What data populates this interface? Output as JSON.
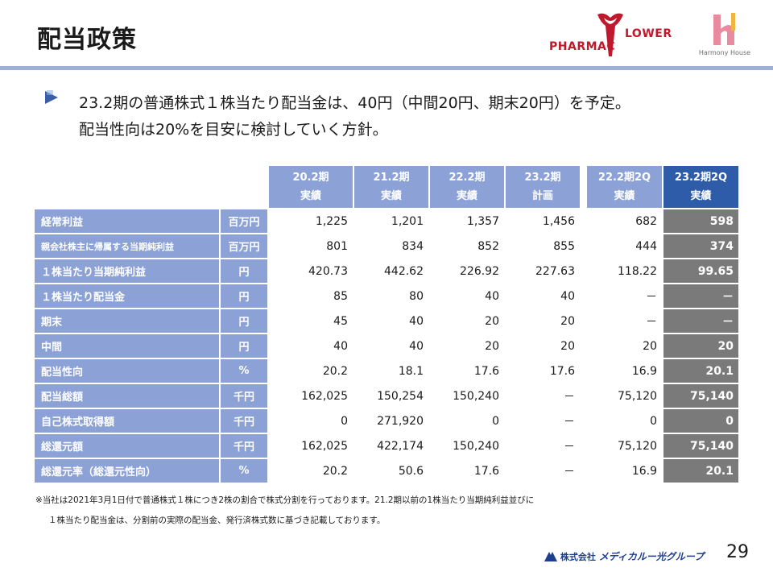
{
  "title": "配当政策",
  "logos": {
    "pharma_left": "PHARMAC",
    "pharma_right": "LOWER",
    "harmony_house": "Harmony House",
    "corporate_prefix": "株式会社",
    "corporate_name": "メディカルー光グループ"
  },
  "lead": {
    "line1": "23.2期の普通株式１株当たり配当金は、40円（中間20円、期末20円）を予定。",
    "line2": "配当性向は20%を目安に検討していく方針。"
  },
  "table": {
    "headers": [
      {
        "top": "20.2期",
        "bottom": "実績"
      },
      {
        "top": "21.2期",
        "bottom": "実績"
      },
      {
        "top": "22.2期",
        "bottom": "実績"
      },
      {
        "top": "23.2期",
        "bottom": "計画"
      },
      {
        "top": "22.2期2Q",
        "bottom": "実績"
      },
      {
        "top": "23.2期2Q",
        "bottom": "実績"
      }
    ],
    "rows": [
      {
        "label": "経常利益",
        "unit": "百万円",
        "values": [
          "1,225",
          "1,201",
          "1,357",
          "1,456",
          "682",
          "598"
        ]
      },
      {
        "label": "親会社株主に帰属する当期純利益",
        "unit": "百万円",
        "values": [
          "801",
          "834",
          "852",
          "855",
          "444",
          "374"
        ]
      },
      {
        "label": "１株当たり当期純利益",
        "unit": "円",
        "values": [
          "420.73",
          "442.62",
          "226.92",
          "227.63",
          "118.22",
          "99.65"
        ]
      },
      {
        "label": "１株当たり配当金",
        "unit": "円",
        "values": [
          "85",
          "80",
          "40",
          "40",
          "－",
          "－"
        ]
      },
      {
        "label": "期末",
        "unit": "円",
        "values": [
          "45",
          "40",
          "20",
          "20",
          "－",
          "－"
        ]
      },
      {
        "label": "中間",
        "unit": "円",
        "values": [
          "40",
          "40",
          "20",
          "20",
          "20",
          "20"
        ]
      },
      {
        "label": "配当性向",
        "unit": "%",
        "values": [
          "20.2",
          "18.1",
          "17.6",
          "17.6",
          "16.9",
          "20.1"
        ]
      },
      {
        "label": "配当総額",
        "unit": "千円",
        "values": [
          "162,025",
          "150,254",
          "150,240",
          "－",
          "75,120",
          "75,140"
        ]
      },
      {
        "label": "自己株式取得額",
        "unit": "千円",
        "values": [
          "0",
          "271,920",
          "0",
          "－",
          "0",
          "0"
        ]
      },
      {
        "label": "総還元額",
        "unit": "千円",
        "values": [
          "162,025",
          "422,174",
          "150,240",
          "－",
          "75,120",
          "75,140"
        ]
      },
      {
        "label": "総還元率（総還元性向）",
        "unit": "%",
        "values": [
          "20.2",
          "50.6",
          "17.6",
          "－",
          "16.9",
          "20.1"
        ]
      }
    ]
  },
  "footnote": {
    "line1": "※当社は2021年3月1日付で普通株式１株につき2株の割合で株式分割を行っております。21.2期以前の1株当たり当期純利益並びに",
    "line2": "１株当たり配当金は、分割前の実際の配当金、発行済株式数に基づき記載しております。"
  },
  "page_number": "29",
  "colors": {
    "header_blue": "#8ca2d6",
    "highlight_blue": "#2e5ca8",
    "highlight_gray": "#7a7a7a",
    "rule": "#9db1d6",
    "brand_red": "#c0182c"
  }
}
